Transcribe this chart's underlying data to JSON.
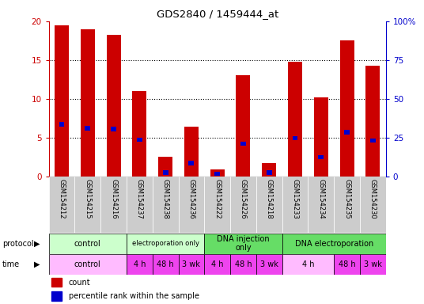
{
  "title": "GDS2840 / 1459444_at",
  "samples": [
    "GSM154212",
    "GSM154215",
    "GSM154216",
    "GSM154237",
    "GSM154238",
    "GSM154236",
    "GSM154222",
    "GSM154226",
    "GSM154218",
    "GSM154233",
    "GSM154234",
    "GSM154235",
    "GSM154230"
  ],
  "counts": [
    19.5,
    19.0,
    18.3,
    11.0,
    2.5,
    6.4,
    0.9,
    13.0,
    1.7,
    14.8,
    10.2,
    17.5,
    14.3
  ],
  "percentile_ranks": [
    6.7,
    6.2,
    6.1,
    4.7,
    0.5,
    1.7,
    0.3,
    4.2,
    0.5,
    4.9,
    2.5,
    5.7,
    4.6
  ],
  "y_max": 20,
  "y_ticks": [
    0,
    5,
    10,
    15,
    20
  ],
  "y_right_ticks": [
    0,
    25,
    50,
    75,
    100
  ],
  "bar_color": "#cc0000",
  "percentile_color": "#0000cc",
  "left_axis_color": "#cc0000",
  "right_axis_color": "#0000cc",
  "sample_bg_color": "#cccccc",
  "proto_light_color": "#ccffcc",
  "proto_dark_color": "#66dd66",
  "time_light_color": "#ffbbff",
  "time_dark_color": "#ee44ee",
  "proto_defs": [
    {
      "start": 0,
      "end": 3,
      "label": "control",
      "dark": false
    },
    {
      "start": 3,
      "end": 6,
      "label": "electroporation only",
      "dark": false
    },
    {
      "start": 6,
      "end": 9,
      "label": "DNA injection\nonly",
      "dark": true
    },
    {
      "start": 9,
      "end": 13,
      "label": "DNA electroporation",
      "dark": true
    }
  ],
  "time_defs": [
    {
      "start": 0,
      "end": 3,
      "label": "control",
      "dark": false
    },
    {
      "start": 3,
      "end": 4,
      "label": "4 h",
      "dark": true
    },
    {
      "start": 4,
      "end": 5,
      "label": "48 h",
      "dark": true
    },
    {
      "start": 5,
      "end": 6,
      "label": "3 wk",
      "dark": true
    },
    {
      "start": 6,
      "end": 7,
      "label": "4 h",
      "dark": true
    },
    {
      "start": 7,
      "end": 8,
      "label": "48 h",
      "dark": true
    },
    {
      "start": 8,
      "end": 9,
      "label": "3 wk",
      "dark": true
    },
    {
      "start": 9,
      "end": 11,
      "label": "4 h",
      "dark": false
    },
    {
      "start": 11,
      "end": 12,
      "label": "48 h",
      "dark": true
    },
    {
      "start": 12,
      "end": 13,
      "label": "3 wk",
      "dark": true
    }
  ]
}
